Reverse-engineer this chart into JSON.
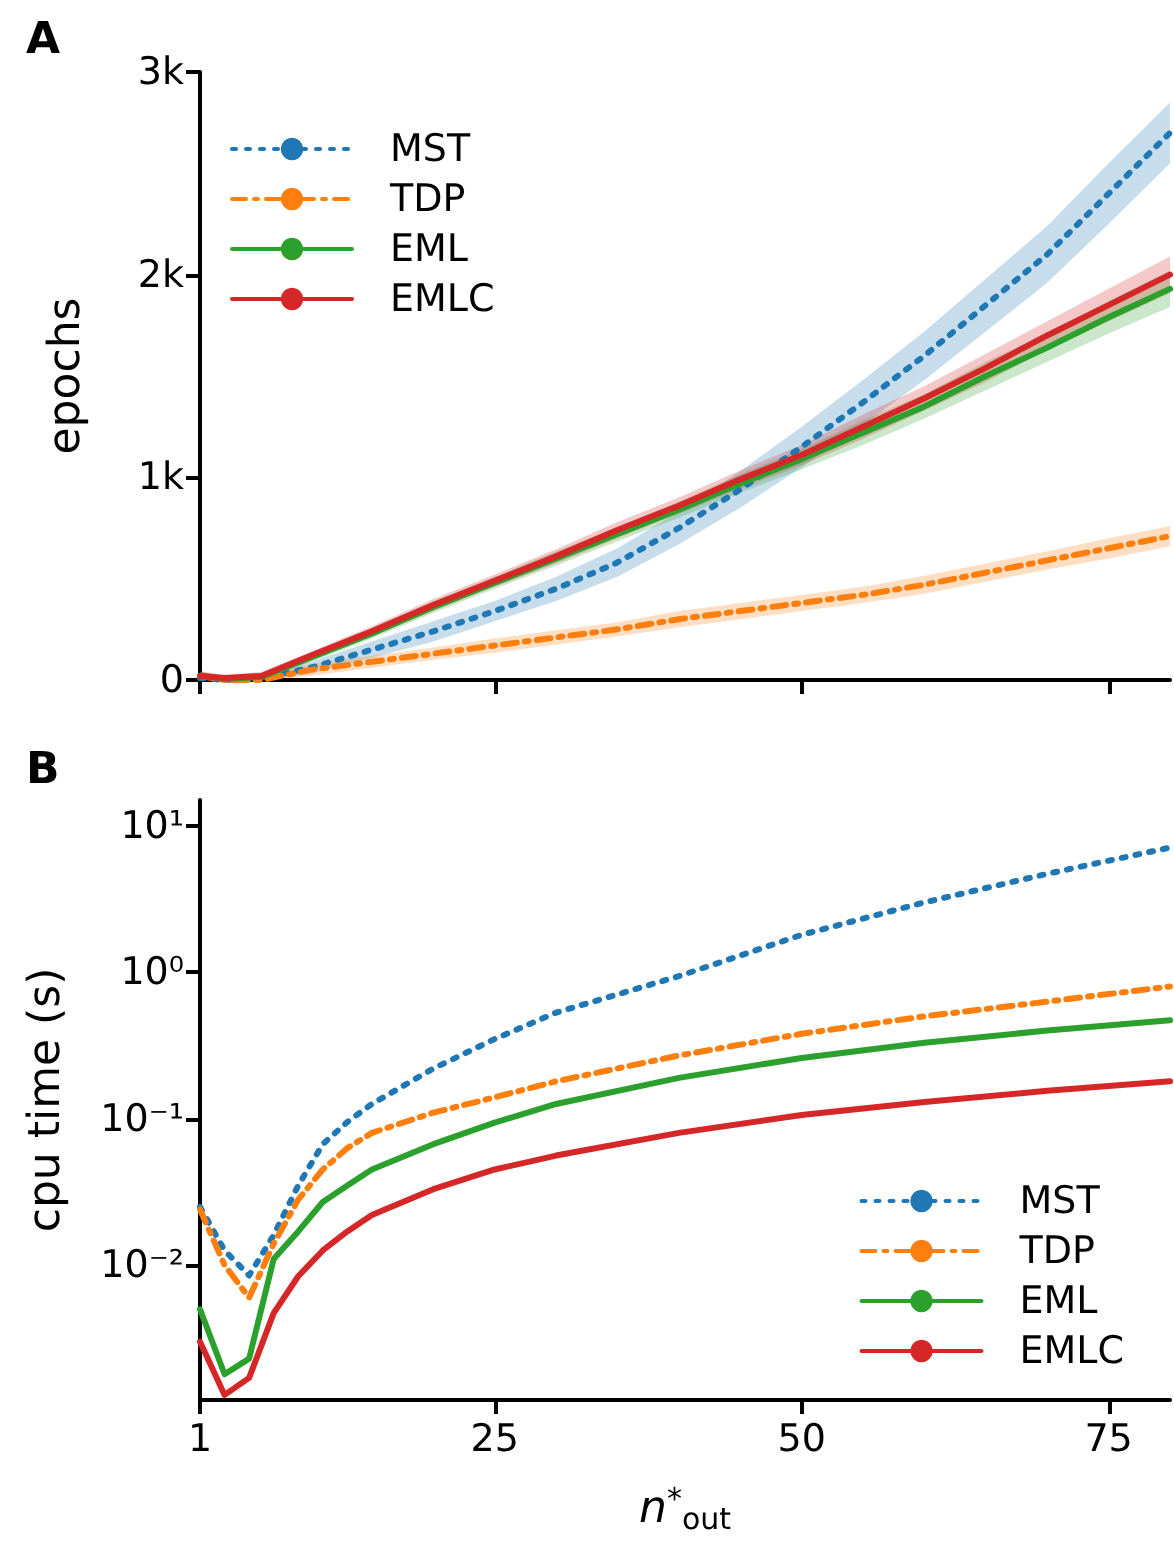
{
  "chart_data": [
    {
      "type": "line",
      "title": "A",
      "ylabel": "epochs",
      "xlim": [
        1,
        80
      ],
      "xticks": [
        1,
        25,
        50,
        75
      ],
      "ylim": [
        0,
        3000
      ],
      "yticks": [
        {
          "value": 0,
          "label": "0"
        },
        {
          "value": 1000,
          "label": "1k"
        },
        {
          "value": 2000,
          "label": "2k"
        },
        {
          "value": 3000,
          "label": "3k"
        }
      ],
      "tick_labels": "y",
      "grid": false,
      "legend": "top left",
      "marker": "none",
      "x": [
        1,
        3,
        6,
        10,
        15,
        20,
        25,
        30,
        35,
        40,
        45,
        50,
        55,
        60,
        65,
        70,
        75,
        80
      ],
      "series": [
        {
          "name": "MST",
          "color": "#1f77b4",
          "line_style": "dotted",
          "values": [
            10,
            0,
            10,
            60,
            150,
            240,
            340,
            450,
            580,
            750,
            940,
            1150,
            1370,
            1600,
            1850,
            2100,
            2400,
            2700
          ],
          "lower": [
            0,
            0,
            0,
            30,
            110,
            190,
            290,
            390,
            510,
            670,
            850,
            1050,
            1260,
            1480,
            1720,
            1960,
            2250,
            2550
          ],
          "upper": [
            40,
            20,
            30,
            90,
            190,
            290,
            390,
            510,
            650,
            830,
            1030,
            1250,
            1480,
            1720,
            1980,
            2240,
            2550,
            2850
          ]
        },
        {
          "name": "TDP",
          "color": "#ff7f0e",
          "line_style": "dashed",
          "values": [
            20,
            0,
            0,
            50,
            90,
            130,
            170,
            210,
            250,
            300,
            340,
            380,
            420,
            470,
            530,
            590,
            650,
            710
          ],
          "lower": [
            0,
            0,
            0,
            20,
            60,
            100,
            135,
            175,
            215,
            260,
            300,
            340,
            380,
            425,
            485,
            545,
            600,
            660
          ],
          "upper": [
            40,
            20,
            20,
            80,
            120,
            160,
            205,
            245,
            285,
            340,
            380,
            420,
            460,
            515,
            575,
            635,
            700,
            760
          ]
        },
        {
          "name": "EML",
          "color": "#2ca02c",
          "line_style": "solid",
          "values": [
            20,
            5,
            15,
            110,
            230,
            360,
            480,
            600,
            720,
            840,
            970,
            1090,
            1220,
            1350,
            1500,
            1640,
            1790,
            1930
          ],
          "lower": [
            0,
            0,
            0,
            90,
            205,
            330,
            450,
            565,
            685,
            800,
            925,
            1040,
            1160,
            1290,
            1430,
            1570,
            1710,
            1840
          ],
          "upper": [
            40,
            20,
            35,
            130,
            255,
            390,
            510,
            635,
            755,
            880,
            1015,
            1140,
            1280,
            1410,
            1570,
            1710,
            1870,
            2020
          ]
        },
        {
          "name": "EMLC",
          "color": "#d62728",
          "line_style": "solid",
          "values": [
            20,
            10,
            20,
            120,
            240,
            370,
            490,
            610,
            740,
            860,
            990,
            1110,
            1250,
            1390,
            1540,
            1700,
            1850,
            2000
          ],
          "lower": [
            0,
            0,
            0,
            100,
            215,
            340,
            460,
            575,
            700,
            820,
            945,
            1060,
            1190,
            1330,
            1470,
            1630,
            1770,
            1910
          ],
          "upper": [
            45,
            25,
            40,
            140,
            265,
            400,
            520,
            645,
            780,
            900,
            1035,
            1160,
            1310,
            1450,
            1610,
            1770,
            1930,
            2090
          ]
        }
      ]
    },
    {
      "type": "line",
      "title": "B",
      "xlabel": "n$^{*}$$_{out}$",
      "ylabel": "cpu time (s)",
      "xlim": [
        1,
        80
      ],
      "xticks": [
        1,
        25,
        50,
        75
      ],
      "ylim": [
        0.0012,
        15
      ],
      "yticks": [
        {
          "value": 0.01,
          "label": "10⁻²"
        },
        {
          "value": 0.1,
          "label": "10⁻¹"
        },
        {
          "value": 1,
          "label": "10⁰"
        },
        {
          "value": 10,
          "label": "10¹"
        }
      ],
      "log": "y",
      "grid": false,
      "legend": "bottom right",
      "marker": "none",
      "x": [
        1,
        3,
        5,
        7,
        9,
        11,
        13,
        15,
        20,
        25,
        30,
        40,
        50,
        60,
        70,
        80
      ],
      "series": [
        {
          "name": "MST",
          "color": "#1f77b4",
          "line_style": "dotted",
          "values": [
            0.025,
            0.0126,
            0.0085,
            0.016,
            0.035,
            0.067,
            0.095,
            0.126,
            0.22,
            0.35,
            0.53,
            0.94,
            1.8,
            3.0,
            4.7,
            7.1
          ]
        },
        {
          "name": "TDP",
          "color": "#ff7f0e",
          "line_style": "dashed",
          "values": [
            0.024,
            0.01,
            0.006,
            0.014,
            0.028,
            0.045,
            0.063,
            0.08,
            0.11,
            0.14,
            0.18,
            0.27,
            0.38,
            0.5,
            0.63,
            0.8
          ]
        },
        {
          "name": "EML",
          "color": "#2ca02c",
          "line_style": "solid",
          "values": [
            0.005,
            0.0018,
            0.0023,
            0.011,
            0.017,
            0.027,
            0.035,
            0.045,
            0.067,
            0.094,
            0.126,
            0.19,
            0.26,
            0.33,
            0.4,
            0.47
          ]
        },
        {
          "name": "EMLC",
          "color": "#d62728",
          "line_style": "solid",
          "values": [
            0.003,
            0.0013,
            0.0017,
            0.0047,
            0.0084,
            0.0126,
            0.017,
            0.022,
            0.033,
            0.045,
            0.056,
            0.08,
            0.106,
            0.13,
            0.155,
            0.18
          ]
        }
      ]
    }
  ]
}
